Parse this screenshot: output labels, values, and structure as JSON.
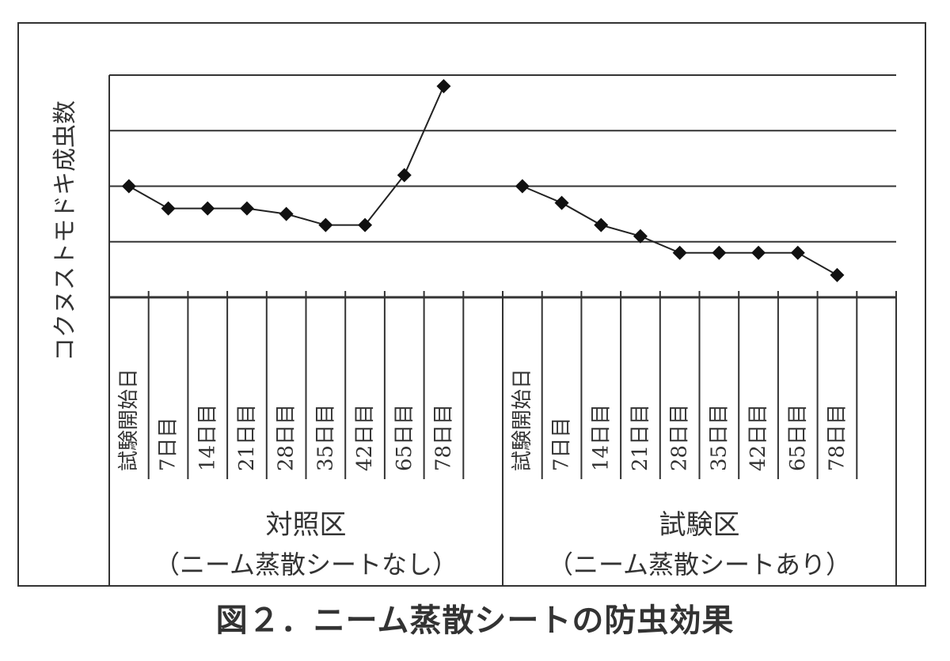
{
  "caption": "図２．ニーム蒸散シートの防虫効果",
  "chart_data": {
    "type": "line",
    "ylabel": "コクヌストモドキ成虫数",
    "ylim": [
      0,
      4
    ],
    "grid": true,
    "y_ticks_labeled": false,
    "groups": [
      {
        "label": "対照区",
        "sublabel": "（ニーム蒸散シートなし）",
        "categories": [
          "試験開始日",
          "7日目",
          "14日目",
          "21日目",
          "28日目",
          "35日目",
          "42日目",
          "65日目",
          "78日目"
        ],
        "values": [
          2.0,
          1.6,
          1.6,
          1.6,
          1.5,
          1.3,
          1.3,
          2.2,
          3.8
        ]
      },
      {
        "label": "試験区",
        "sublabel": "（ニーム蒸散シートあり）",
        "categories": [
          "試験開始日",
          "7日目",
          "14日目",
          "21日目",
          "28日目",
          "35日目",
          "42日目",
          "65日目",
          "78日目"
        ],
        "values": [
          2.0,
          1.7,
          1.3,
          1.1,
          0.8,
          0.8,
          0.8,
          0.8,
          0.4
        ]
      }
    ]
  }
}
